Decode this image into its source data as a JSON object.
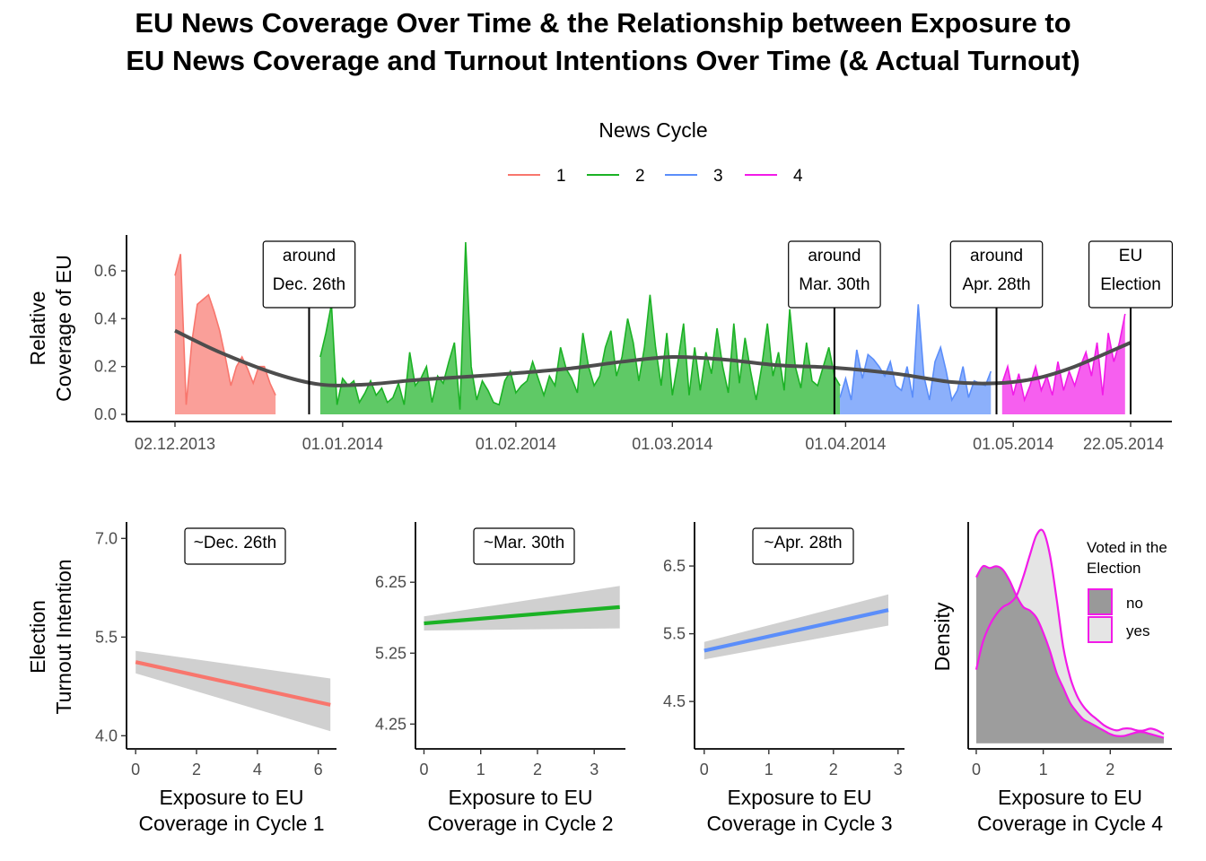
{
  "title_line1": "EU News Coverage Over Time & the Relationship between Exposure to",
  "title_line2": "EU News Coverage and Turnout Intentions Over Time (& Actual Turnout)",
  "colors": {
    "cycle1": "#F8766D",
    "cycle2": "#1BB225",
    "cycle3": "#5B8EFA",
    "cycle4": "#F21BE8",
    "smooth": "#4D4D4D",
    "ribbon": "#C8C8C8",
    "density_no": "#999999",
    "density_yes": "#E5E5E5"
  },
  "chart_data": [
    {
      "type": "area",
      "panel": "timeline",
      "ylabel_line1": "Relative",
      "ylabel_line2": "Coverage of EU",
      "ylim": [
        -0.02,
        0.75
      ],
      "yticks": [
        "0.0",
        "0.2",
        "0.4",
        "0.6"
      ],
      "xticks": [
        "02.12.2013",
        "01.01.2014",
        "01.02.2014",
        "01.03.2014",
        "01.04.2014",
        "01.05.2014",
        "22.05.2014"
      ],
      "legend_title": "News Cycle",
      "legend_position": "top",
      "legend_entries": [
        "1",
        "2",
        "3",
        "4"
      ],
      "annotations": [
        {
          "date": "2013-12-26",
          "line1": "around",
          "line2": "Dec. 26th"
        },
        {
          "date": "2014-03-30",
          "line1": "around",
          "line2": "Mar. 30th"
        },
        {
          "date": "2014-04-28",
          "line1": "around",
          "line2": "Apr. 28th"
        },
        {
          "date": "2014-05-22",
          "line1": "EU",
          "line2": "Election"
        }
      ],
      "series": [
        {
          "name": "1",
          "start": "2013-12-02",
          "values": [
            0.58,
            0.67,
            0.04,
            0.3,
            0.46,
            0.48,
            0.5,
            0.43,
            0.35,
            0.24,
            0.12,
            0.2,
            0.24,
            0.19,
            0.13,
            0.2,
            0.2,
            0.13,
            0.08
          ]
        },
        {
          "name": "2",
          "start": "2013-12-28",
          "values": [
            0.24,
            0.34,
            0.46,
            0.04,
            0.15,
            0.12,
            0.14,
            0.05,
            0.09,
            0.14,
            0.08,
            0.11,
            0.05,
            0.07,
            0.13,
            0.04,
            0.26,
            0.12,
            0.15,
            0.2,
            0.05,
            0.16,
            0.13,
            0.22,
            0.3,
            0.02,
            0.72,
            0.2,
            0.06,
            0.14,
            0.1,
            0.05,
            0.04,
            0.14,
            0.18,
            0.09,
            0.12,
            0.14,
            0.22,
            0.15,
            0.08,
            0.16,
            0.12,
            0.28,
            0.19,
            0.15,
            0.09,
            0.34,
            0.2,
            0.12,
            0.16,
            0.28,
            0.35,
            0.16,
            0.24,
            0.4,
            0.3,
            0.14,
            0.28,
            0.5,
            0.28,
            0.12,
            0.34,
            0.08,
            0.22,
            0.38,
            0.08,
            0.28,
            0.1,
            0.26,
            0.17,
            0.36,
            0.2,
            0.09,
            0.38,
            0.13,
            0.32,
            0.18,
            0.06,
            0.2,
            0.38,
            0.16,
            0.26,
            0.1,
            0.44,
            0.2,
            0.11,
            0.3,
            0.14,
            0.12,
            0.2,
            0.28,
            0.16,
            0.12
          ]
        },
        {
          "name": "3",
          "start": "2014-03-31",
          "values": [
            0.07,
            0.15,
            0.06,
            0.27,
            0.15,
            0.25,
            0.23,
            0.2,
            0.16,
            0.22,
            0.12,
            0.1,
            0.2,
            0.07,
            0.46,
            0.16,
            0.06,
            0.22,
            0.28,
            0.18,
            0.06,
            0.1,
            0.2,
            0.07,
            0.14,
            0.13,
            0.12,
            0.18
          ]
        },
        {
          "name": "4",
          "start": "2014-04-29",
          "values": [
            0.13,
            0.2,
            0.08,
            0.17,
            0.06,
            0.12,
            0.2,
            0.1,
            0.16,
            0.08,
            0.22,
            0.1,
            0.18,
            0.12,
            0.2,
            0.26,
            0.16,
            0.3,
            0.08,
            0.34,
            0.22,
            0.3,
            0.42
          ]
        }
      ],
      "smooth": {
        "name": "smooth",
        "dates": [
          "2013-12-02",
          "2013-12-10",
          "2013-12-20",
          "2013-12-28",
          "2014-01-05",
          "2014-01-15",
          "2014-01-28",
          "2014-02-10",
          "2014-02-20",
          "2014-03-01",
          "2014-03-10",
          "2014-03-20",
          "2014-03-30",
          "2014-04-10",
          "2014-04-20",
          "2014-04-28",
          "2014-05-05",
          "2014-05-12",
          "2014-05-22"
        ],
        "values": [
          0.35,
          0.26,
          0.17,
          0.125,
          0.125,
          0.145,
          0.165,
          0.19,
          0.22,
          0.24,
          0.23,
          0.205,
          0.195,
          0.17,
          0.135,
          0.13,
          0.15,
          0.2,
          0.3
        ]
      }
    },
    {
      "type": "line",
      "panel": "cycle1",
      "label": "~Dec. 26th",
      "xlabel_line1": "Exposure to EU",
      "xlabel_line2": "Coverage in Cycle 1",
      "ylabel_line1": "Election",
      "ylabel_line2": "Turnout Intention",
      "xlim": [
        -0.3,
        6.6
      ],
      "ylim": [
        3.8,
        7.25
      ],
      "xticks": [
        "0",
        "2",
        "4",
        "6"
      ],
      "yticks": [
        "4.0",
        "5.5",
        "7.0"
      ],
      "fit": {
        "x": [
          0,
          6.4
        ],
        "y": [
          5.12,
          4.47
        ]
      },
      "ribbon": {
        "x": [
          0,
          6.4
        ],
        "lower": [
          4.95,
          4.07
        ],
        "upper": [
          5.29,
          4.87
        ]
      }
    },
    {
      "type": "line",
      "panel": "cycle2",
      "label": "~Mar. 30th",
      "xlabel_line1": "Exposure to EU",
      "xlabel_line2": "Coverage in Cycle 2",
      "xlim": [
        -0.15,
        3.55
      ],
      "ylim": [
        3.9,
        7.1
      ],
      "xticks": [
        "0",
        "1",
        "2",
        "3"
      ],
      "yticks": [
        "4.25",
        "5.25",
        "6.25"
      ],
      "fit": {
        "x": [
          0,
          3.45
        ],
        "y": [
          5.67,
          5.9
        ]
      },
      "ribbon": {
        "x": [
          0,
          3.45
        ],
        "lower": [
          5.57,
          5.6
        ],
        "upper": [
          5.77,
          6.2
        ]
      }
    },
    {
      "type": "line",
      "panel": "cycle3",
      "label": "~Apr. 28th",
      "xlabel_line1": "Exposure to EU",
      "xlabel_line2": "Coverage in Cycle 3",
      "xlim": [
        -0.15,
        3.1
      ],
      "ylim": [
        3.8,
        7.15
      ],
      "xticks": [
        "0",
        "1",
        "2",
        "3"
      ],
      "yticks": [
        "4.5",
        "5.5",
        "6.5"
      ],
      "fit": {
        "x": [
          0,
          2.85
        ],
        "y": [
          5.25,
          5.85
        ]
      },
      "ribbon": {
        "x": [
          0,
          2.85
        ],
        "lower": [
          5.12,
          5.62
        ],
        "upper": [
          5.38,
          6.08
        ]
      }
    },
    {
      "type": "area",
      "panel": "cycle4",
      "ylabel": "Density",
      "xlabel_line1": "Exposure to EU",
      "xlabel_line2": "Coverage in Cycle 4",
      "xlim": [
        -0.12,
        2.92
      ],
      "ylim": [
        -0.03,
        1.2
      ],
      "xticks": [
        "0",
        "1",
        "2"
      ],
      "legend_title_line1": "Voted in the",
      "legend_title_line2": "Election",
      "legend_entries": [
        "no",
        "yes"
      ],
      "x": [
        0,
        0.1,
        0.2,
        0.3,
        0.4,
        0.5,
        0.6,
        0.7,
        0.8,
        0.9,
        1.0,
        1.1,
        1.2,
        1.3,
        1.4,
        1.5,
        1.6,
        1.7,
        1.8,
        1.9,
        2.0,
        2.1,
        2.2,
        2.3,
        2.4,
        2.5,
        2.6,
        2.7,
        2.8
      ],
      "series": [
        {
          "name": "no",
          "values": [
            0.9,
            0.96,
            0.95,
            0.96,
            0.94,
            0.88,
            0.8,
            0.74,
            0.72,
            0.68,
            0.6,
            0.5,
            0.38,
            0.3,
            0.22,
            0.17,
            0.13,
            0.11,
            0.09,
            0.07,
            0.05,
            0.04,
            0.04,
            0.05,
            0.06,
            0.06,
            0.05,
            0.04,
            0.03
          ]
        },
        {
          "name": "yes",
          "values": [
            0.4,
            0.55,
            0.64,
            0.7,
            0.74,
            0.76,
            0.8,
            0.9,
            1.02,
            1.13,
            1.15,
            1.02,
            0.78,
            0.52,
            0.36,
            0.26,
            0.2,
            0.16,
            0.13,
            0.1,
            0.08,
            0.07,
            0.08,
            0.08,
            0.07,
            0.07,
            0.08,
            0.07,
            0.05
          ]
        }
      ]
    }
  ]
}
